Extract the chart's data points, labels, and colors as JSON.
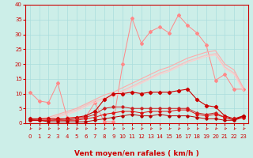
{
  "x": [
    0,
    1,
    2,
    3,
    4,
    5,
    6,
    7,
    8,
    9,
    10,
    11,
    12,
    13,
    14,
    15,
    16,
    17,
    18,
    19,
    20,
    21,
    22,
    23
  ],
  "background_color": "#cceee8",
  "grid_color": "#aadddd",
  "xlabel": "Vent moyen/en rafales ( km/h )",
  "xlabel_color": "#cc0000",
  "tick_color": "#cc0000",
  "ylim": [
    0,
    40
  ],
  "yticks": [
    0,
    5,
    10,
    15,
    20,
    25,
    30,
    35,
    40
  ],
  "series": [
    {
      "name": "line1_light",
      "color": "#ff8888",
      "linewidth": 0.7,
      "marker": "D",
      "markersize": 2.0,
      "y": [
        10.5,
        7.5,
        7.0,
        13.5,
        2.0,
        2.0,
        2.0,
        7.0,
        0.5,
        0.5,
        20.0,
        35.5,
        27.0,
        31.0,
        32.5,
        30.5,
        36.5,
        33.0,
        30.5,
        26.5,
        14.5,
        16.5,
        11.5,
        11.5
      ]
    },
    {
      "name": "line2_ramp",
      "color": "#ffaaaa",
      "linewidth": 0.8,
      "marker": null,
      "markersize": 0,
      "y": [
        1.0,
        1.5,
        2.0,
        3.0,
        4.0,
        5.0,
        6.5,
        8.0,
        9.5,
        10.5,
        12.0,
        13.5,
        15.0,
        16.5,
        18.0,
        19.0,
        20.5,
        22.0,
        23.0,
        24.0,
        24.5,
        20.0,
        18.0,
        12.0
      ]
    },
    {
      "name": "line3_ramp",
      "color": "#ffbbbb",
      "linewidth": 0.8,
      "marker": null,
      "markersize": 0,
      "y": [
        1.0,
        1.0,
        1.5,
        2.5,
        3.5,
        4.5,
        6.0,
        7.5,
        8.5,
        9.5,
        11.0,
        12.5,
        14.0,
        15.5,
        17.0,
        18.0,
        19.5,
        21.0,
        22.0,
        23.0,
        23.5,
        19.0,
        17.0,
        11.5
      ]
    },
    {
      "name": "line4_ramp",
      "color": "#ffcccc",
      "linewidth": 0.8,
      "marker": null,
      "markersize": 0,
      "y": [
        0.5,
        0.5,
        1.0,
        2.0,
        3.0,
        4.0,
        5.5,
        7.0,
        8.0,
        9.0,
        10.5,
        12.0,
        13.5,
        15.0,
        16.5,
        17.5,
        19.0,
        20.5,
        21.5,
        22.5,
        23.0,
        18.5,
        16.5,
        11.0
      ]
    },
    {
      "name": "line5_dark_main",
      "color": "#cc0000",
      "linewidth": 0.8,
      "marker": "D",
      "markersize": 2.2,
      "y": [
        1.5,
        1.5,
        1.5,
        1.5,
        1.5,
        2.0,
        2.5,
        4.0,
        8.0,
        10.0,
        10.0,
        10.5,
        10.0,
        10.5,
        10.5,
        10.5,
        11.0,
        11.5,
        8.0,
        6.0,
        5.5,
        2.5,
        1.5,
        2.5
      ]
    },
    {
      "name": "line6_dark",
      "color": "#cc2222",
      "linewidth": 0.7,
      "marker": "D",
      "markersize": 1.8,
      "y": [
        1.2,
        1.0,
        1.0,
        1.2,
        1.0,
        1.5,
        2.0,
        3.0,
        5.0,
        5.5,
        5.5,
        5.0,
        5.0,
        5.0,
        5.0,
        5.0,
        5.0,
        5.0,
        3.5,
        3.0,
        3.5,
        2.0,
        1.5,
        2.0
      ]
    },
    {
      "name": "line7_dark",
      "color": "#dd1111",
      "linewidth": 0.7,
      "marker": "D",
      "markersize": 1.8,
      "y": [
        1.0,
        1.0,
        1.0,
        1.0,
        1.0,
        1.0,
        1.5,
        2.0,
        3.0,
        3.5,
        4.0,
        4.0,
        3.5,
        4.0,
        4.0,
        4.0,
        4.5,
        4.5,
        3.0,
        2.5,
        3.0,
        2.0,
        1.0,
        2.0
      ]
    },
    {
      "name": "line8_dark",
      "color": "#bb0000",
      "linewidth": 0.7,
      "marker": "D",
      "markersize": 1.8,
      "y": [
        1.0,
        1.0,
        0.5,
        0.5,
        0.5,
        0.5,
        0.5,
        1.0,
        1.5,
        2.0,
        2.5,
        3.0,
        2.5,
        2.5,
        3.0,
        2.5,
        2.5,
        2.5,
        2.0,
        1.5,
        1.5,
        1.0,
        1.0,
        2.5
      ]
    }
  ],
  "tick_fontsize": 5.0,
  "xlabel_fontsize": 6.5,
  "xlabel_fontweight": "bold"
}
